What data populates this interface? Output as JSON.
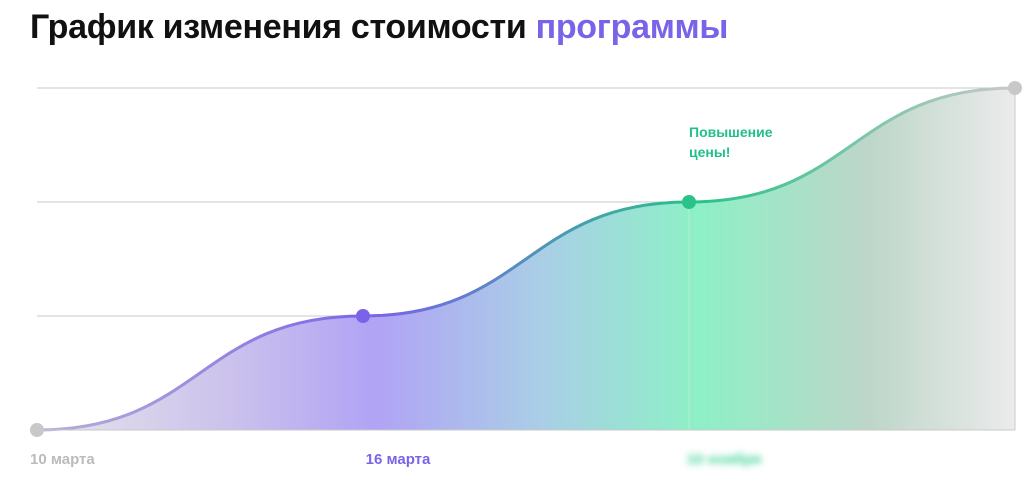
{
  "title": {
    "main": "График изменения стоимости",
    "accent": "программы"
  },
  "colors": {
    "accent": "#7a63e9",
    "grid": "#c9c9c9",
    "baseline": "#c9c9c9",
    "line_start": "#b9b0d6",
    "line_mid": "#7a63e9",
    "line_mid_end": "#28c28a",
    "line_end": "#c8c8c8",
    "point_start": "#c8c8c8",
    "point_mid": "#7a63e9",
    "point_highlight": "#28c28a",
    "point_end": "#c8c8c8",
    "label_first": "#bbbbbb",
    "label_second": "#7a63e9",
    "label_third": "#42d49a",
    "annotation": "#20c088"
  },
  "chart_data": {
    "type": "area",
    "title": "",
    "xlabel": "",
    "ylabel": "",
    "grid": true,
    "points": [
      {
        "x": 0,
        "y": 0,
        "label": "10 марта"
      },
      {
        "x": 1,
        "y": 1,
        "label": "16 марта"
      },
      {
        "x": 2,
        "y": 2,
        "label": "10 ноября"
      },
      {
        "x": 3,
        "y": 3,
        "label": ""
      }
    ],
    "xlim": [
      0,
      3
    ],
    "ylim": [
      0,
      3
    ],
    "annotations": [
      {
        "point_index": 2,
        "lines": [
          "Повышение",
          "цены!"
        ]
      }
    ]
  }
}
